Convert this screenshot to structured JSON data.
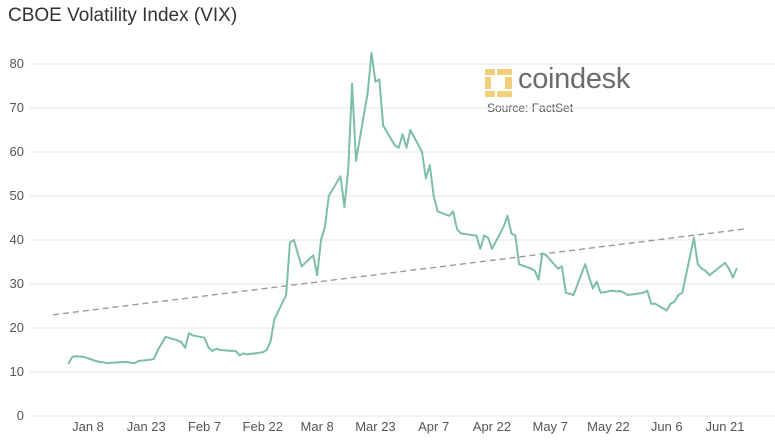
{
  "colors": {
    "line": "#7cbfa6",
    "grid": "#e6e6e6",
    "trend": "#9a9a9a",
    "logo": "#f2cf7a"
  },
  "brand": {
    "name": "coindesk",
    "source": "Source: FactSet"
  },
  "chart_data": {
    "type": "line",
    "title": "CBOE Volatility Index (VIX)",
    "xlabel": "",
    "ylabel": "",
    "ylim": [
      0,
      85
    ],
    "yticks": [
      0,
      10,
      20,
      30,
      40,
      50,
      60,
      70,
      80
    ],
    "xticks": [
      "Jan 8",
      "Jan 23",
      "Feb 7",
      "Feb 22",
      "Mar 8",
      "Mar 23",
      "Apr 7",
      "Apr 22",
      "May 7",
      "May 22",
      "Jun 6",
      "Jun 21"
    ],
    "grid": true,
    "x": [
      "2022-01-03",
      "2022-01-04",
      "2022-01-05",
      "2022-01-06",
      "2022-01-07",
      "2022-01-10",
      "2022-01-11",
      "2022-01-12",
      "2022-01-13",
      "2022-01-14",
      "2022-01-18",
      "2022-01-19",
      "2022-01-20",
      "2022-01-21",
      "2022-01-24",
      "2022-01-25",
      "2022-01-26",
      "2022-01-27",
      "2022-01-28",
      "2022-01-31",
      "2022-02-01",
      "2022-02-02",
      "2022-02-03",
      "2022-02-04",
      "2022-02-07",
      "2022-02-08",
      "2022-02-09",
      "2022-02-10",
      "2022-02-11",
      "2022-02-14",
      "2022-02-15",
      "2022-02-16",
      "2022-02-17",
      "2022-02-18",
      "2022-02-22",
      "2022-02-23",
      "2022-02-24",
      "2022-02-25",
      "2022-02-28",
      "2022-03-01",
      "2022-03-02",
      "2022-03-03",
      "2022-03-04",
      "2022-03-07",
      "2022-03-08",
      "2022-03-09",
      "2022-03-10",
      "2022-03-11",
      "2022-03-14",
      "2022-03-15",
      "2022-03-16",
      "2022-03-17",
      "2022-03-18",
      "2022-03-21",
      "2022-03-22",
      "2022-03-23",
      "2022-03-24",
      "2022-03-25",
      "2022-03-28",
      "2022-03-29",
      "2022-03-30",
      "2022-03-31",
      "2022-04-01",
      "2022-04-04",
      "2022-04-05",
      "2022-04-06",
      "2022-04-07",
      "2022-04-08",
      "2022-04-11",
      "2022-04-12",
      "2022-04-13",
      "2022-04-14",
      "2022-04-18",
      "2022-04-19",
      "2022-04-20",
      "2022-04-21",
      "2022-04-22",
      "2022-04-25",
      "2022-04-26",
      "2022-04-27",
      "2022-04-28",
      "2022-04-29",
      "2022-05-02",
      "2022-05-03",
      "2022-05-04",
      "2022-05-05",
      "2022-05-06",
      "2022-05-09",
      "2022-05-10",
      "2022-05-11",
      "2022-05-12",
      "2022-05-13",
      "2022-05-16",
      "2022-05-17",
      "2022-05-18",
      "2022-05-19",
      "2022-05-20",
      "2022-05-23",
      "2022-05-24",
      "2022-05-25",
      "2022-05-26",
      "2022-05-27",
      "2022-05-31",
      "2022-06-01",
      "2022-06-02",
      "2022-06-03",
      "2022-06-06",
      "2022-06-07",
      "2022-06-08",
      "2022-06-09",
      "2022-06-10",
      "2022-06-13",
      "2022-06-14",
      "2022-06-15",
      "2022-06-16",
      "2022-06-17",
      "2022-06-21",
      "2022-06-22",
      "2022-06-23",
      "2022-06-24"
    ],
    "series": [
      {
        "values": [
          12.0,
          13.5,
          13.6,
          13.5,
          13.4,
          12.5,
          12.3,
          12.2,
          12.0,
          12.1,
          12.3,
          12.1,
          12.0,
          12.5,
          12.8,
          13.0,
          15.0,
          16.5,
          18.0,
          17.2,
          16.8,
          15.5,
          18.8,
          18.3,
          17.8,
          15.6,
          14.8,
          15.3,
          15.0,
          14.8,
          14.8,
          13.8,
          14.2,
          14.0,
          14.5,
          15.0,
          17.0,
          22.0,
          27.5,
          39.5,
          40.0,
          37.0,
          34.0,
          36.5,
          32.0,
          40.0,
          43.0,
          50.0,
          54.5,
          47.5,
          56.0,
          75.5,
          58.0,
          73.5,
          82.5,
          76.0,
          76.5,
          66.0,
          61.5,
          61.0,
          64.0,
          61.0,
          65.0,
          60.0,
          54.0,
          57.0,
          50.0,
          46.5,
          45.5,
          46.5,
          42.5,
          41.5,
          41.0,
          38.0,
          41.0,
          40.5,
          38.0,
          43.0,
          45.5,
          41.5,
          41.0,
          34.5,
          33.5,
          33.0,
          31.0,
          37.0,
          36.5,
          33.5,
          34.0,
          28.0,
          27.8,
          27.5,
          34.5,
          31.5,
          29.0,
          30.5,
          28.0,
          28.5,
          28.3,
          28.4,
          28.0,
          27.5,
          28.0,
          28.5,
          25.5,
          25.5,
          24.0,
          25.5,
          26.0,
          27.5,
          28.0,
          40.5,
          34.5,
          33.5,
          33.0,
          32.0,
          34.8,
          33.5,
          31.5,
          33.5
        ]
      }
    ],
    "trendline": {
      "from": [
        "2021-12-30",
        23.0
      ],
      "to": [
        "2022-06-26",
        42.5
      ]
    }
  }
}
